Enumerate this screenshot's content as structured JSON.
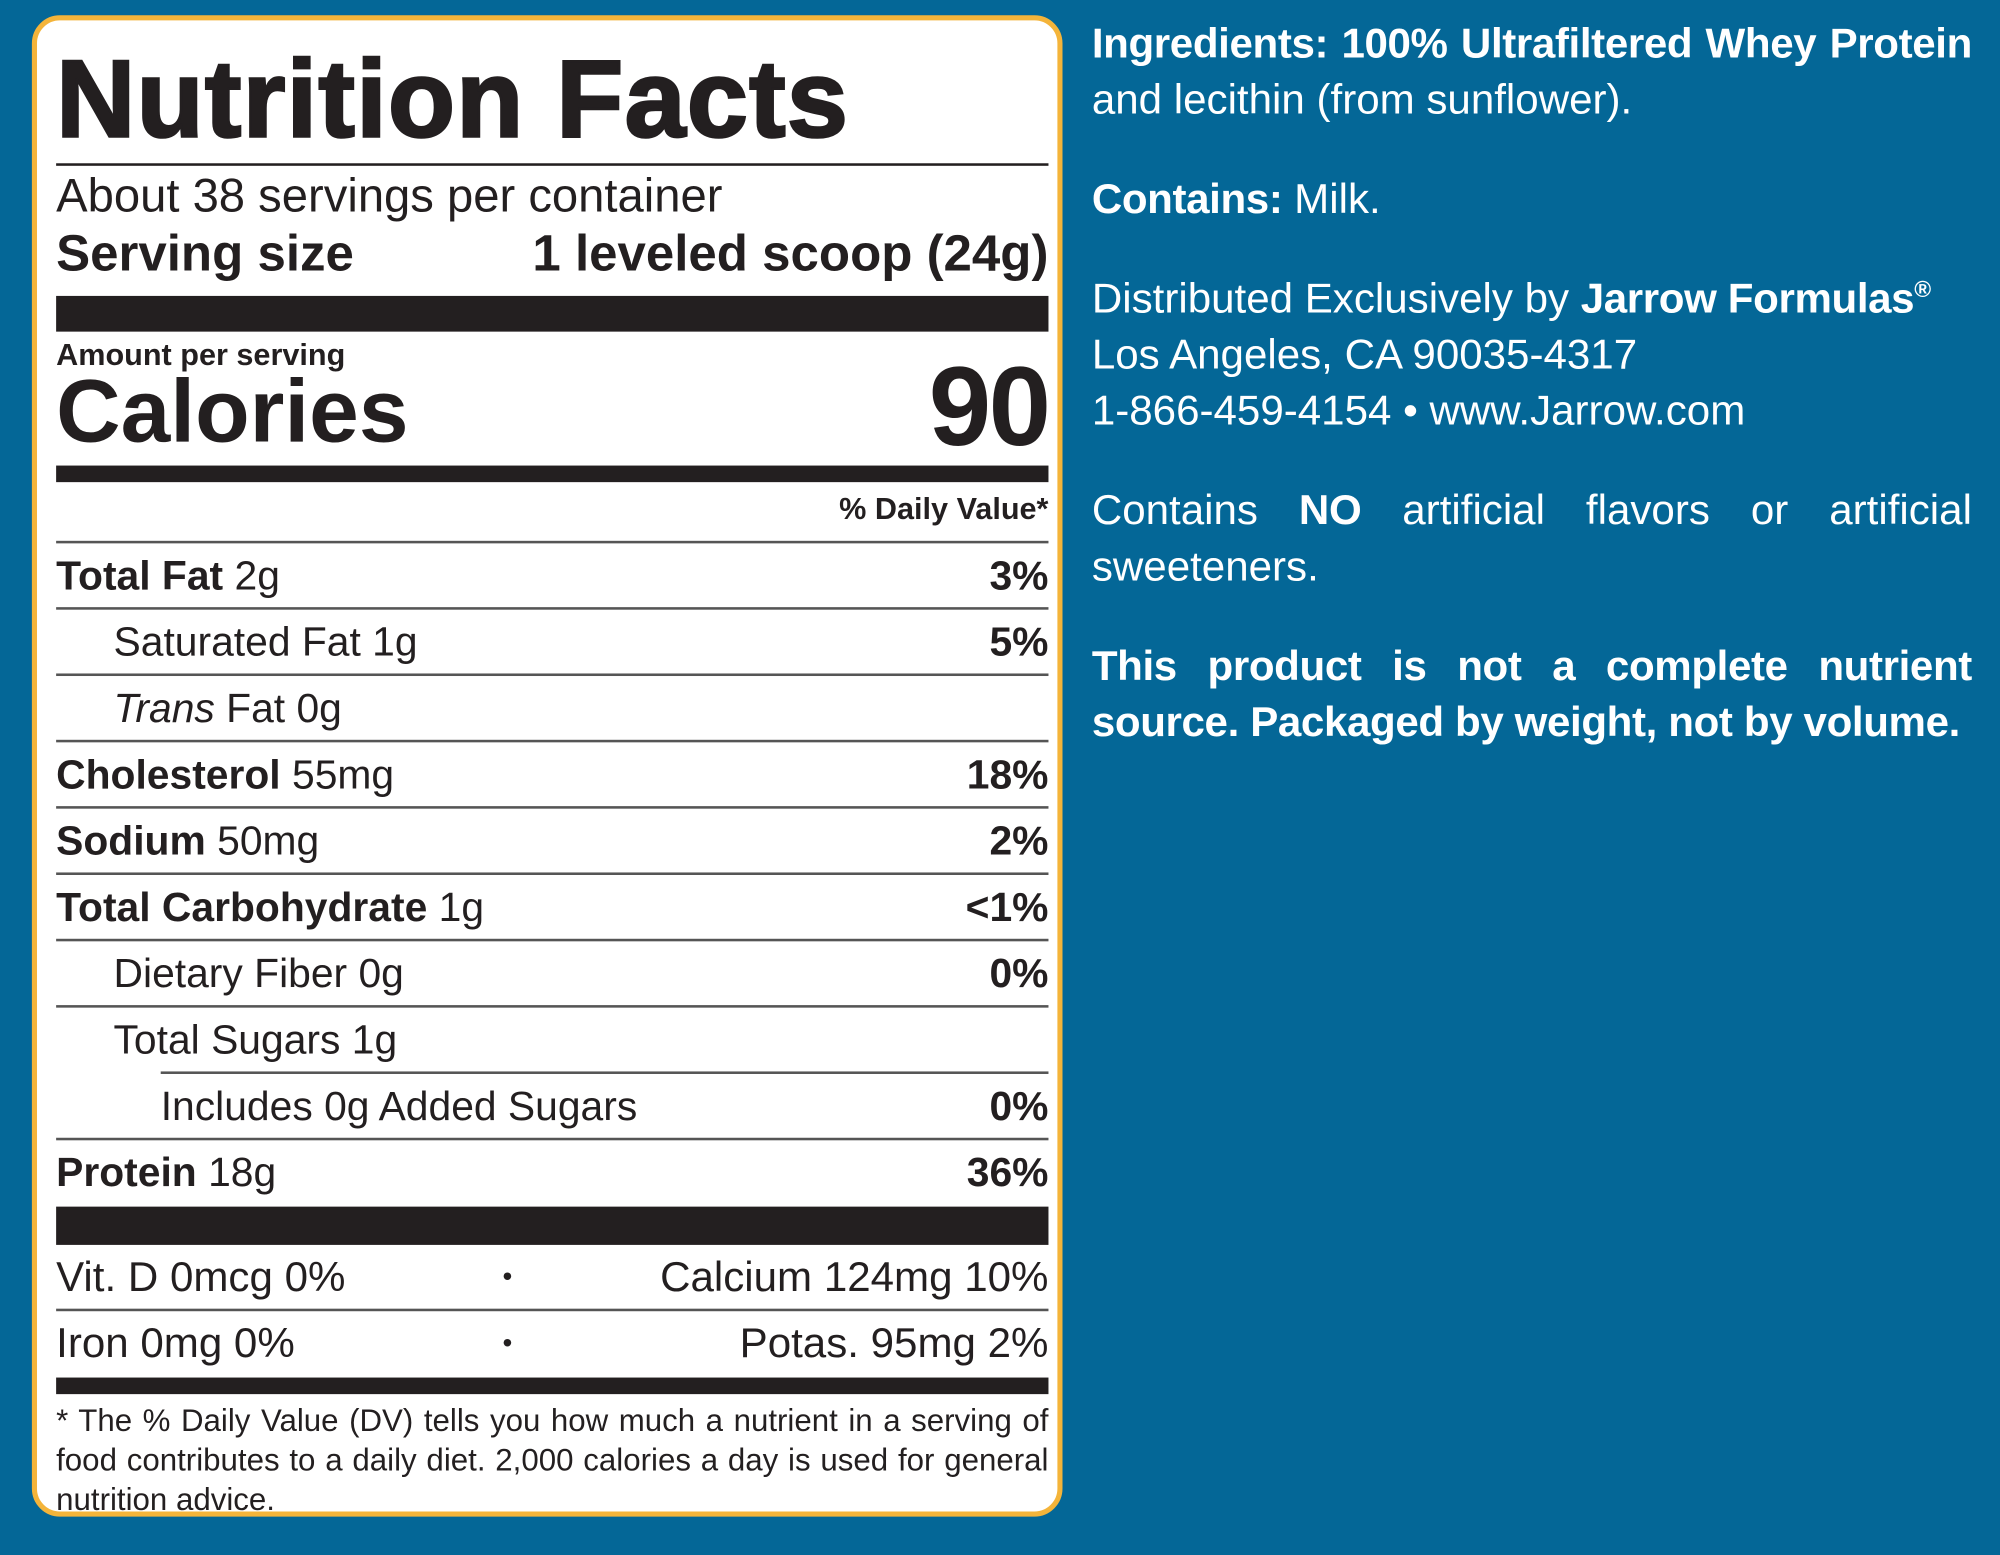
{
  "label": {
    "title": "Nutrition Facts",
    "servings": "About 38 servings per container",
    "serving_size_label": "Serving size",
    "serving_size_value": "1 leveled scoop (24g)",
    "amount_per_serving": "Amount per serving",
    "calories_label": "Calories",
    "calories_value": 90,
    "daily_value_header": "% Daily Value*",
    "nutrients": [
      {
        "name": "Total Fat",
        "amount": "2g",
        "dv": "3%",
        "indent": 0
      },
      {
        "name": "Saturated Fat 1g",
        "dv": "5%",
        "indent": 1
      },
      {
        "name_italic": "Trans",
        "name": "Fat 0g",
        "indent": 1
      },
      {
        "name": "Cholesterol",
        "amount": "55mg",
        "dv": "18%",
        "indent": 0
      },
      {
        "name": "Sodium",
        "amount": "50mg",
        "dv": "2%",
        "indent": 0
      },
      {
        "name": "Total Carbohydrate",
        "amount": "1g",
        "dv": "<1%",
        "indent": 0
      },
      {
        "name": "Dietary Fiber 0g",
        "dv": "0%",
        "indent": 1
      },
      {
        "name": "Total Sugars 1g",
        "indent": 1
      },
      {
        "name": "Includes 0g Added Sugars",
        "dv": "0%",
        "indent": 2
      },
      {
        "name": "Protein",
        "amount": "18g",
        "dv": "36%",
        "indent": 0
      }
    ],
    "separator": "•",
    "vitamins": [
      [
        "Vit. D 0mcg 0%",
        "Calcium 124mg 10%"
      ],
      [
        "Iron 0mg 0%",
        "Potas. 95mg 2%"
      ]
    ],
    "footnote": "* The % Daily Value (DV) tells you how much a nutrient in a serving of food contributes to a daily diet. 2,000 calories a day is used for general nutrition advice."
  },
  "info": [
    [
      {
        "text": "Ingredients: 100% Ultrafiltered Whey Protein",
        "bold": true
      },
      {
        "text": " and lecithin (from sunflower).",
        "bold": false
      }
    ],
    [
      {
        "text": "Contains:",
        "bold": true
      },
      {
        "text": " Milk.",
        "bold": false
      }
    ],
    [
      {
        "text": "Distributed Exclusively by ",
        "bold": false
      },
      {
        "text": "Jarrow Formulas",
        "bold": true
      },
      {
        "text": "®",
        "bold": true,
        "sup": true
      },
      {
        "text": " Los Angeles, CA 90035-4317",
        "bold": false,
        "break": true
      },
      {
        "text": "1-866-459-4154 • www.Jarrow.com",
        "bold": false,
        "break": true
      }
    ],
    [
      {
        "text": "Contains ",
        "bold": false
      },
      {
        "text": "NO",
        "bold": true
      },
      {
        "text": " artificial flavors or artificial sweeteners.",
        "bold": false
      }
    ],
    [
      {
        "text": "This product is not a complete nutrient source.  Packaged by weight, not by volume.",
        "bold": true
      }
    ]
  ]
}
